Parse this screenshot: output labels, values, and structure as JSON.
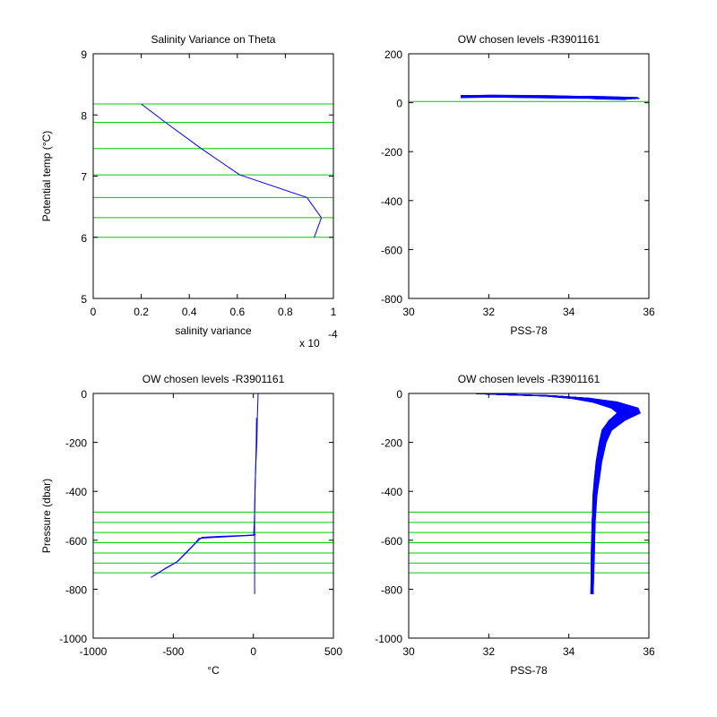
{
  "colors": {
    "data_line": "#0000ff",
    "level_line": "#00cc00",
    "axes": "#000000"
  },
  "chart_data": [
    {
      "id": "tl",
      "type": "line",
      "title": "Salinity Variance on Theta",
      "xlabel": "salinity variance",
      "ylabel": "Potential temp (°C)",
      "xlim": [
        0,
        1
      ],
      "ylim": [
        5,
        9
      ],
      "x_exponent_label": "x 10",
      "x_exponent_power": "-4",
      "xticks": [
        0,
        0.2,
        0.4,
        0.6,
        0.8,
        1
      ],
      "xtick_labels": [
        "0",
        "0.2",
        "0.4",
        "0.6",
        "0.8",
        "1"
      ],
      "yticks": [
        5,
        6,
        7,
        8,
        9
      ],
      "ytick_labels": [
        "5",
        "6",
        "7",
        "8",
        "9"
      ],
      "grid": false,
      "hlines": [
        6.0,
        6.32,
        6.65,
        7.02,
        7.45,
        7.88,
        8.18
      ],
      "series": [
        {
          "x": [
            0.2,
            0.3,
            0.45,
            0.61,
            0.89,
            0.95,
            0.92
          ],
          "y": [
            8.18,
            7.88,
            7.45,
            7.02,
            6.65,
            6.32,
            6.0
          ]
        }
      ]
    },
    {
      "id": "tr",
      "type": "line",
      "title": "OW chosen levels -R3901161",
      "xlabel": "PSS-78",
      "ylabel": "",
      "xlim": [
        30,
        36
      ],
      "ylim": [
        -800,
        200
      ],
      "xticks": [
        30,
        32,
        34,
        36
      ],
      "xtick_labels": [
        "30",
        "32",
        "34",
        "36"
      ],
      "yticks": [
        -800,
        -600,
        -400,
        -200,
        0,
        200
      ],
      "ytick_labels": [
        "-800",
        "-600",
        "-400",
        "-200",
        "0",
        "200"
      ],
      "grid": false,
      "hlines": [
        5
      ],
      "bundle": {
        "base_x": [
          31.3,
          32.0,
          33.5,
          34.5,
          34.8,
          35.6
        ],
        "base_y": [
          25,
          26,
          24,
          22,
          20,
          18
        ],
        "count": 12,
        "dx": 0.04,
        "dy": 4,
        "jitter": 3
      }
    },
    {
      "id": "bl",
      "type": "line",
      "title": "OW chosen levels -R3901161",
      "xlabel": "°C",
      "ylabel": "Pressure (dbar)",
      "xlim": [
        -1000,
        500
      ],
      "ylim": [
        -1000,
        0
      ],
      "xticks": [
        -1000,
        -500,
        0,
        500
      ],
      "xtick_labels": [
        "-1000",
        "-500",
        "0",
        "500"
      ],
      "yticks": [
        -1000,
        -800,
        -600,
        -400,
        -200,
        0
      ],
      "ytick_labels": [
        "-1000",
        "-800",
        "-600",
        "-400",
        "-200",
        "0"
      ],
      "grid": false,
      "hlines": [
        -485,
        -527,
        -568,
        -610,
        -652,
        -693,
        -733
      ],
      "series": [
        {
          "x": [
            30,
            25,
            22,
            15,
            10,
            8,
            8
          ],
          "y": [
            0,
            -100,
            -200,
            -300,
            -400,
            -500,
            -820
          ]
        },
        {
          "x": [
            20,
            18,
            15,
            10,
            8,
            5,
            2,
            -100,
            -200,
            -340,
            -360,
            -420,
            -480,
            -560,
            -640
          ],
          "y": [
            -100,
            -200,
            -300,
            -400,
            -480,
            -540,
            -580,
            -583,
            -587,
            -592,
            -610,
            -650,
            -690,
            -720,
            -752
          ]
        },
        {
          "x": [
            15,
            -80,
            -200,
            -320,
            -350,
            -410,
            -470,
            -550,
            -620
          ],
          "y": [
            -578,
            -581,
            -584,
            -588,
            -605,
            -645,
            -685,
            -715,
            -745
          ]
        }
      ]
    },
    {
      "id": "br",
      "type": "line",
      "title": "OW chosen levels -R3901161",
      "xlabel": "PSS-78",
      "ylabel": "",
      "xlim": [
        30,
        36
      ],
      "ylim": [
        -1000,
        0
      ],
      "xticks": [
        30,
        32,
        34,
        36
      ],
      "xtick_labels": [
        "30",
        "32",
        "34",
        "36"
      ],
      "yticks": [
        -1000,
        -800,
        -600,
        -400,
        -200,
        0
      ],
      "ytick_labels": [
        "-1000",
        "-800",
        "-600",
        "-400",
        "-200",
        "0"
      ],
      "grid": false,
      "hlines": [
        -485,
        -527,
        -568,
        -610,
        -652,
        -693,
        -733
      ],
      "bundle": {
        "base_x": [
          31.7,
          32.5,
          33.5,
          34.3,
          34.9,
          35.4,
          35.5,
          35.2,
          34.95,
          34.85,
          34.75,
          34.7,
          34.65,
          34.62,
          34.6,
          34.58
        ],
        "base_y": [
          0,
          -5,
          -10,
          -20,
          -35,
          -60,
          -80,
          -110,
          -150,
          -200,
          -280,
          -350,
          -420,
          -520,
          -650,
          -820
        ],
        "count": 40,
        "spread": [
          0.0,
          0.05,
          0.12,
          0.22,
          0.3,
          0.32,
          0.28,
          0.2,
          0.12,
          0.08,
          0.06,
          0.05,
          0.04,
          0.03,
          0.03,
          0.02
        ],
        "shift": 0.012
      }
    }
  ]
}
